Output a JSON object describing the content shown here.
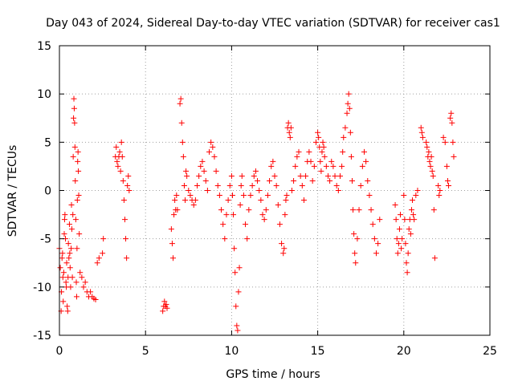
{
  "chart_data": {
    "type": "scatter",
    "title": "Day 043 of 2024, Sidereal Day-to-day VTEC variation (SDTVAR) for receiver cas1",
    "xlabel": "GPS time / hours",
    "ylabel": "SDTVAR / TECUs",
    "xlim": [
      0,
      25
    ],
    "ylim": [
      -15,
      15
    ],
    "xticks": [
      0,
      5,
      10,
      15,
      20,
      25
    ],
    "yticks": [
      -15,
      -10,
      -5,
      0,
      5,
      10,
      15
    ],
    "grid": true,
    "marker": "+",
    "marker_color": "#ff0000",
    "series": [
      {
        "name": "SDTVAR",
        "points": [
          [
            0.0,
            -6.0
          ],
          [
            0.05,
            -8.0
          ],
          [
            0.1,
            -12.5
          ],
          [
            0.12,
            -10.5
          ],
          [
            0.15,
            -7.0
          ],
          [
            0.18,
            -6.5
          ],
          [
            0.2,
            -9.0
          ],
          [
            0.22,
            -11.5
          ],
          [
            0.25,
            -8.5
          ],
          [
            0.28,
            -4.5
          ],
          [
            0.3,
            -3.0
          ],
          [
            0.32,
            -2.5
          ],
          [
            0.35,
            -5.0
          ],
          [
            0.38,
            -9.5
          ],
          [
            0.4,
            -10.0
          ],
          [
            0.42,
            -7.5
          ],
          [
            0.45,
            -12.0
          ],
          [
            0.48,
            -12.5
          ],
          [
            0.5,
            -9.0
          ],
          [
            0.52,
            -5.5
          ],
          [
            0.55,
            -7.0
          ],
          [
            0.58,
            -3.5
          ],
          [
            0.6,
            -6.5
          ],
          [
            0.62,
            -8.0
          ],
          [
            0.65,
            -10.0
          ],
          [
            0.68,
            -6.0
          ],
          [
            0.7,
            -1.5
          ],
          [
            0.72,
            -4.0
          ],
          [
            0.75,
            -9.0
          ],
          [
            0.78,
            -2.5
          ],
          [
            0.8,
            3.5
          ],
          [
            0.82,
            7.5
          ],
          [
            0.84,
            9.5
          ],
          [
            0.86,
            8.5
          ],
          [
            0.88,
            7.0
          ],
          [
            0.9,
            4.5
          ],
          [
            0.92,
            1.0
          ],
          [
            0.95,
            -3.0
          ],
          [
            0.98,
            -9.5
          ],
          [
            1.0,
            -11.0
          ],
          [
            1.02,
            -6.0
          ],
          [
            1.04,
            -1.0
          ],
          [
            1.06,
            3.0
          ],
          [
            1.08,
            4.0
          ],
          [
            1.1,
            2.0
          ],
          [
            1.12,
            -0.5
          ],
          [
            1.15,
            -4.5
          ],
          [
            1.2,
            -8.5
          ],
          [
            1.3,
            -9.0
          ],
          [
            1.4,
            -10.0
          ],
          [
            1.5,
            -9.5
          ],
          [
            1.6,
            -10.5
          ],
          [
            1.7,
            -11.0
          ],
          [
            1.8,
            -10.5
          ],
          [
            1.9,
            -11.0
          ],
          [
            2.0,
            -11.2
          ],
          [
            2.1,
            -11.3
          ],
          [
            2.2,
            -7.5
          ],
          [
            2.3,
            -7.0
          ],
          [
            2.5,
            -6.5
          ],
          [
            2.55,
            -5.0
          ],
          [
            3.25,
            3.5
          ],
          [
            3.3,
            4.5
          ],
          [
            3.35,
            3.0
          ],
          [
            3.4,
            2.5
          ],
          [
            3.45,
            3.5
          ],
          [
            3.5,
            4.0
          ],
          [
            3.55,
            2.0
          ],
          [
            3.6,
            5.0
          ],
          [
            3.65,
            3.5
          ],
          [
            3.7,
            1.0
          ],
          [
            3.75,
            -1.0
          ],
          [
            3.8,
            -3.0
          ],
          [
            3.85,
            -5.0
          ],
          [
            3.9,
            -7.0
          ],
          [
            3.95,
            0.5
          ],
          [
            4.0,
            1.5
          ],
          [
            4.05,
            0.0
          ],
          [
            6.0,
            -12.5
          ],
          [
            6.05,
            -12.0
          ],
          [
            6.1,
            -11.5
          ],
          [
            6.15,
            -12.0
          ],
          [
            6.2,
            -11.8
          ],
          [
            6.25,
            -12.2
          ],
          [
            6.5,
            -4.0
          ],
          [
            6.55,
            -5.5
          ],
          [
            6.6,
            -7.0
          ],
          [
            6.65,
            -2.5
          ],
          [
            6.7,
            -1.0
          ],
          [
            6.75,
            -2.0
          ],
          [
            6.8,
            -0.5
          ],
          [
            6.85,
            -2.0
          ],
          [
            7.0,
            9.0
          ],
          [
            7.05,
            9.5
          ],
          [
            7.1,
            7.0
          ],
          [
            7.15,
            5.0
          ],
          [
            7.2,
            3.5
          ],
          [
            7.25,
            0.5
          ],
          [
            7.3,
            -1.0
          ],
          [
            7.35,
            2.0
          ],
          [
            7.4,
            1.5
          ],
          [
            7.5,
            0.0
          ],
          [
            7.6,
            -0.5
          ],
          [
            7.7,
            -1.0
          ],
          [
            7.8,
            -1.5
          ],
          [
            7.9,
            -1.0
          ],
          [
            8.0,
            0.5
          ],
          [
            8.1,
            1.5
          ],
          [
            8.2,
            2.5
          ],
          [
            8.3,
            3.0
          ],
          [
            8.4,
            2.0
          ],
          [
            8.5,
            1.0
          ],
          [
            8.6,
            0.0
          ],
          [
            8.7,
            4.0
          ],
          [
            8.8,
            5.0
          ],
          [
            8.9,
            4.5
          ],
          [
            9.0,
            3.5
          ],
          [
            9.1,
            2.0
          ],
          [
            9.2,
            0.5
          ],
          [
            9.3,
            -0.5
          ],
          [
            9.4,
            -2.0
          ],
          [
            9.5,
            -3.5
          ],
          [
            9.6,
            -5.0
          ],
          [
            9.7,
            -2.5
          ],
          [
            9.8,
            -1.0
          ],
          [
            9.9,
            0.5
          ],
          [
            10.0,
            1.5
          ],
          [
            10.05,
            -0.5
          ],
          [
            10.1,
            -2.5
          ],
          [
            10.15,
            -6.0
          ],
          [
            10.2,
            -8.5
          ],
          [
            10.25,
            -12.0
          ],
          [
            10.3,
            -14.0
          ],
          [
            10.35,
            -14.5
          ],
          [
            10.4,
            -10.5
          ],
          [
            10.45,
            -8.0
          ],
          [
            10.5,
            -1.5
          ],
          [
            10.55,
            0.5
          ],
          [
            10.6,
            1.5
          ],
          [
            10.7,
            -0.5
          ],
          [
            10.8,
            -3.5
          ],
          [
            10.9,
            -5.0
          ],
          [
            11.0,
            -2.0
          ],
          [
            11.1,
            -0.5
          ],
          [
            11.2,
            0.5
          ],
          [
            11.3,
            1.5
          ],
          [
            11.4,
            2.0
          ],
          [
            11.5,
            1.0
          ],
          [
            11.6,
            0.0
          ],
          [
            11.7,
            -1.0
          ],
          [
            11.8,
            -2.5
          ],
          [
            11.9,
            -3.0
          ],
          [
            12.0,
            -2.0
          ],
          [
            12.1,
            -0.5
          ],
          [
            12.2,
            1.0
          ],
          [
            12.3,
            2.5
          ],
          [
            12.4,
            3.0
          ],
          [
            12.5,
            1.5
          ],
          [
            12.6,
            0.5
          ],
          [
            12.7,
            -1.5
          ],
          [
            12.8,
            -3.5
          ],
          [
            12.9,
            -5.5
          ],
          [
            13.0,
            -6.5
          ],
          [
            13.05,
            -6.0
          ],
          [
            13.1,
            -2.5
          ],
          [
            13.15,
            -1.0
          ],
          [
            13.2,
            -0.5
          ],
          [
            13.25,
            6.5
          ],
          [
            13.3,
            7.0
          ],
          [
            13.35,
            6.0
          ],
          [
            13.4,
            5.5
          ],
          [
            13.45,
            6.5
          ],
          [
            13.5,
            0.0
          ],
          [
            13.6,
            1.0
          ],
          [
            13.7,
            2.5
          ],
          [
            13.8,
            3.5
          ],
          [
            13.9,
            4.0
          ],
          [
            14.0,
            1.5
          ],
          [
            14.1,
            0.5
          ],
          [
            14.2,
            -1.0
          ],
          [
            14.3,
            1.5
          ],
          [
            14.4,
            3.0
          ],
          [
            14.5,
            4.0
          ],
          [
            14.6,
            3.0
          ],
          [
            14.7,
            1.0
          ],
          [
            14.8,
            2.5
          ],
          [
            14.9,
            5.0
          ],
          [
            15.0,
            6.0
          ],
          [
            15.05,
            5.5
          ],
          [
            15.1,
            4.5
          ],
          [
            15.15,
            3.0
          ],
          [
            15.2,
            2.0
          ],
          [
            15.25,
            4.0
          ],
          [
            15.3,
            5.0
          ],
          [
            15.35,
            4.5
          ],
          [
            15.4,
            3.5
          ],
          [
            15.5,
            2.5
          ],
          [
            15.6,
            1.5
          ],
          [
            15.7,
            1.0
          ],
          [
            15.8,
            3.0
          ],
          [
            15.9,
            2.5
          ],
          [
            16.0,
            1.5
          ],
          [
            16.1,
            0.5
          ],
          [
            16.2,
            0.0
          ],
          [
            16.3,
            1.5
          ],
          [
            16.4,
            2.5
          ],
          [
            16.45,
            4.0
          ],
          [
            16.5,
            5.5
          ],
          [
            16.6,
            6.5
          ],
          [
            16.7,
            8.0
          ],
          [
            16.75,
            9.0
          ],
          [
            16.8,
            10.0
          ],
          [
            16.85,
            8.5
          ],
          [
            16.9,
            6.0
          ],
          [
            16.95,
            3.5
          ],
          [
            17.0,
            1.0
          ],
          [
            17.05,
            -2.0
          ],
          [
            17.1,
            -4.5
          ],
          [
            17.15,
            -6.5
          ],
          [
            17.2,
            -7.5
          ],
          [
            17.3,
            -5.0
          ],
          [
            17.4,
            -2.0
          ],
          [
            17.5,
            0.5
          ],
          [
            17.6,
            2.5
          ],
          [
            17.7,
            4.0
          ],
          [
            17.8,
            3.0
          ],
          [
            17.9,
            1.0
          ],
          [
            18.0,
            -0.5
          ],
          [
            18.1,
            -2.0
          ],
          [
            18.2,
            -3.5
          ],
          [
            18.3,
            -5.0
          ],
          [
            18.4,
            -6.5
          ],
          [
            18.5,
            -5.5
          ],
          [
            18.6,
            -3.0
          ],
          [
            19.5,
            -1.5
          ],
          [
            19.55,
            -3.0
          ],
          [
            19.6,
            -5.0
          ],
          [
            19.65,
            -6.5
          ],
          [
            19.7,
            -5.5
          ],
          [
            19.75,
            -4.0
          ],
          [
            19.8,
            -2.5
          ],
          [
            19.85,
            -6.0
          ],
          [
            19.9,
            -5.0
          ],
          [
            20.0,
            -0.5
          ],
          [
            20.05,
            -3.0
          ],
          [
            20.1,
            -5.5
          ],
          [
            20.15,
            -7.5
          ],
          [
            20.2,
            -8.5
          ],
          [
            20.25,
            -6.5
          ],
          [
            20.3,
            -4.0
          ],
          [
            20.35,
            -3.0
          ],
          [
            20.4,
            -4.5
          ],
          [
            20.45,
            -2.0
          ],
          [
            20.5,
            -1.0
          ],
          [
            20.55,
            -2.5
          ],
          [
            20.6,
            -3.0
          ],
          [
            20.7,
            -0.5
          ],
          [
            20.8,
            0.0
          ],
          [
            21.0,
            6.5
          ],
          [
            21.05,
            6.0
          ],
          [
            21.1,
            5.5
          ],
          [
            21.3,
            5.0
          ],
          [
            21.35,
            4.5
          ],
          [
            21.4,
            3.5
          ],
          [
            21.45,
            4.0
          ],
          [
            21.5,
            3.0
          ],
          [
            21.55,
            2.5
          ],
          [
            21.6,
            3.5
          ],
          [
            21.65,
            2.0
          ],
          [
            21.7,
            1.5
          ],
          [
            21.75,
            -2.0
          ],
          [
            21.8,
            -7.0
          ],
          [
            22.0,
            0.5
          ],
          [
            22.05,
            -0.5
          ],
          [
            22.1,
            0.0
          ],
          [
            22.3,
            5.5
          ],
          [
            22.4,
            5.0
          ],
          [
            22.5,
            2.5
          ],
          [
            22.55,
            1.0
          ],
          [
            22.6,
            0.5
          ],
          [
            22.7,
            7.5
          ],
          [
            22.75,
            8.0
          ],
          [
            22.8,
            7.0
          ],
          [
            22.85,
            5.0
          ],
          [
            22.9,
            3.5
          ]
        ]
      }
    ]
  }
}
